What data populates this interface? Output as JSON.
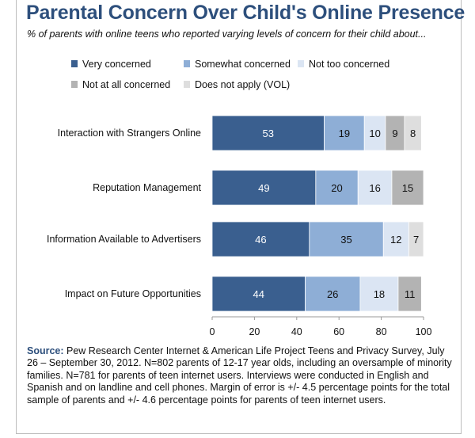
{
  "title": "Parental Concern Over Child's Online Presence",
  "subtitle": "% of parents with online teens who reported varying levels of concern for their child about...",
  "source": {
    "label": "Source:",
    "text": " Pew Research Center Internet & American Life Project Teens and Privacy Survey, July 26 – September 30, 2012. N=802 parents of 12-17 year olds, including an oversample of minority families. N=781 for parents of teen internet users. Interviews were conducted in English and Spanish and on landline and cell phones.  Margin of error is +/- 4.5 percentage points for the total sample of parents and +/- 4.6 percentage points for parents of teen internet users."
  },
  "chart_data": {
    "type": "bar",
    "orientation": "horizontal",
    "stacked": true,
    "categories": [
      "Interaction with Strangers Online",
      "Reputation Management",
      "Information Available to Advertisers",
      "Impact on Future Opportunities"
    ],
    "series": [
      {
        "name": "Very concerned",
        "color": "#3a5f8f",
        "values": [
          53,
          49,
          46,
          44
        ]
      },
      {
        "name": "Somewhat concerned",
        "color": "#8eaed6",
        "values": [
          19,
          20,
          35,
          26
        ]
      },
      {
        "name": "Not too concerned",
        "color": "#dbe5f3",
        "values": [
          10,
          16,
          12,
          18
        ]
      },
      {
        "name": "Not at all concerned",
        "color": "#b3b3b3",
        "values": [
          9,
          15,
          0,
          11
        ]
      },
      {
        "name": "Does not apply (VOL)",
        "color": "#dedede",
        "values": [
          8,
          0,
          7,
          0
        ]
      }
    ],
    "xlim": [
      0,
      100
    ],
    "xticks": [
      0,
      20,
      40,
      60,
      80,
      100
    ],
    "grid": false,
    "legend_position": "top"
  }
}
